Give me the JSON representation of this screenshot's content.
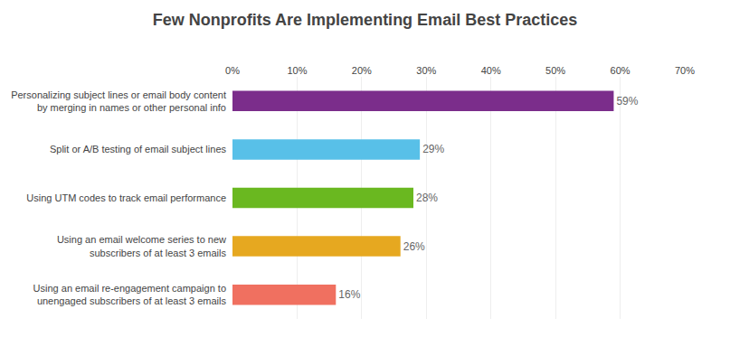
{
  "chart_data": {
    "type": "bar",
    "orientation": "horizontal",
    "title": "Few Nonprofits Are Implementing Email Best Practices",
    "categories": [
      "Using an email re-engagement campaign to\nunengaged subscribers of at least 3 emails",
      "Using an email welcome series to new\nsubscribers of at least 3 emails",
      "Using UTM codes to track email performance",
      "Split or A/B testing of email subject lines",
      "Personalizing subject lines or email body content\nby merging in names or other personal info"
    ],
    "values": [
      16,
      26,
      28,
      29,
      59
    ],
    "value_labels": [
      "16%",
      "26%",
      "28%",
      "29%",
      "59%"
    ],
    "data_labels": true,
    "colors": [
      "#f07060",
      "#e6a820",
      "#6ab820",
      "#58c0e8",
      "#7b2d8b"
    ],
    "xlim": [
      0,
      70
    ],
    "xticks": [
      {
        "value": 0,
        "label": "0%"
      },
      {
        "value": 10,
        "label": "10%"
      },
      {
        "value": 20,
        "label": "20%"
      },
      {
        "value": 30,
        "label": "30%"
      },
      {
        "value": 40,
        "label": "40%"
      },
      {
        "value": 50,
        "label": "50%"
      },
      {
        "value": 60,
        "label": "60%"
      },
      {
        "value": 70,
        "label": "70%"
      }
    ],
    "grid": true
  }
}
